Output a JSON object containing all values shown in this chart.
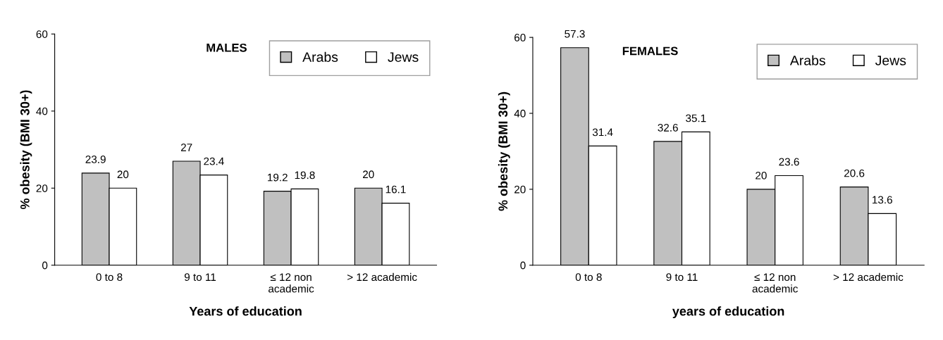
{
  "chart_data": [
    {
      "type": "bar",
      "title": "MALES",
      "xlabel": "Years of education",
      "ylabel": "% obesity (BMI 30+)",
      "categories": [
        "0 to 8",
        "9 to 11",
        "≤ 12 non\nacademic",
        "> 12 academic"
      ],
      "ylim": [
        0,
        60
      ],
      "yticks": [
        0,
        20,
        40,
        60
      ],
      "legend": "top right",
      "data_labels": true,
      "series": [
        {
          "name": "Arabs",
          "color": "#c0c0c0",
          "values": [
            23.9,
            27,
            19.2,
            20
          ]
        },
        {
          "name": "Jews",
          "color": "#ffffff",
          "values": [
            20,
            23.4,
            19.8,
            16.1
          ]
        }
      ]
    },
    {
      "type": "bar",
      "title": "FEMALES",
      "xlabel": "years of education",
      "ylabel": "% obesity (BMI 30+)",
      "categories": [
        "0 to 8",
        "9 to 11",
        "≤ 12 non\nacademic",
        "> 12 academic"
      ],
      "ylim": [
        0,
        60
      ],
      "yticks": [
        0,
        20,
        40,
        60
      ],
      "legend": "top right",
      "data_labels": true,
      "series": [
        {
          "name": "Arabs",
          "color": "#c0c0c0",
          "values": [
            57.3,
            32.6,
            20,
            20.6
          ]
        },
        {
          "name": "Jews",
          "color": "#ffffff",
          "values": [
            31.4,
            35.1,
            23.6,
            13.6
          ]
        }
      ]
    }
  ]
}
